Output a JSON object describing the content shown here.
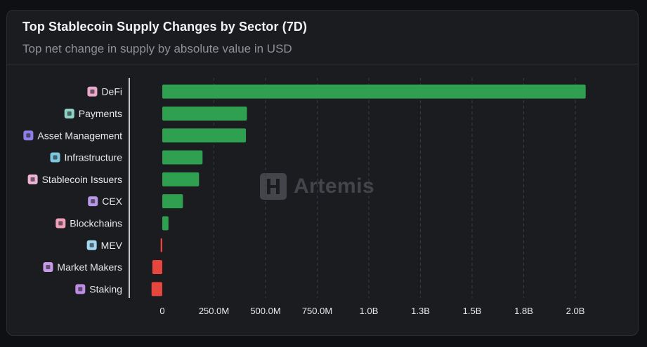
{
  "card": {
    "title": "Top Stablecoin Supply Changes by Sector (7D)",
    "subtitle": "Top net change in supply by absolute value in USD",
    "watermark": "Artemis"
  },
  "colors": {
    "positive": "#2ea04f",
    "negative": "#e5473f",
    "grid": "#3a3b42",
    "axis": "#ffffff",
    "label": "#e8e8ea"
  },
  "chart_data": {
    "type": "bar",
    "orientation": "horizontal",
    "title": "Top Stablecoin Supply Changes by Sector (7D)",
    "subtitle": "Top net change in supply by absolute value in USD",
    "categories": [
      "DeFi",
      "Payments",
      "Asset Management",
      "Infrastructure",
      "Stablecoin Issuers",
      "CEX",
      "Blockchains",
      "MEV",
      "Market Makers",
      "Staking"
    ],
    "icons": [
      "defi-icon",
      "payments-icon",
      "asset-management-icon",
      "infrastructure-icon",
      "stablecoin-issuers-icon",
      "cex-icon",
      "blockchains-icon",
      "mev-icon",
      "market-makers-icon",
      "staking-icon"
    ],
    "values": [
      2050000000,
      410000000,
      405000000,
      195000000,
      178000000,
      100000000,
      30000000,
      -8000000,
      -48000000,
      -52000000
    ],
    "xticks": [
      0,
      250000000,
      500000000,
      750000000,
      1000000000,
      1250000000,
      1500000000,
      1750000000,
      2000000000
    ],
    "xtick_labels": [
      "0",
      "250.0M",
      "500.0M",
      "750.0M",
      "1.0B",
      "1.3B",
      "1.5B",
      "1.8B",
      "2.0B"
    ],
    "xlim": [
      -150000000,
      2100000000
    ],
    "grid": true
  }
}
